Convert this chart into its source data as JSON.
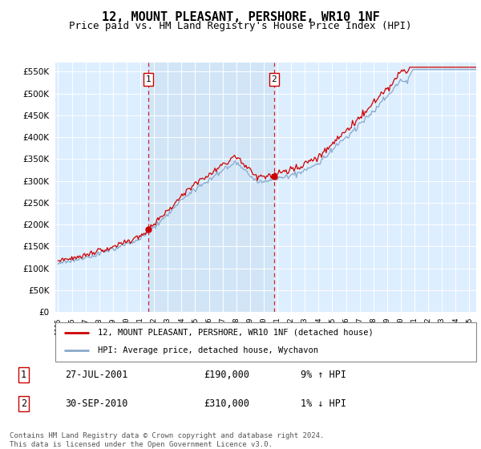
{
  "title": "12, MOUNT PLEASANT, PERSHORE, WR10 1NF",
  "subtitle": "Price paid vs. HM Land Registry's House Price Index (HPI)",
  "title_fontsize": 11,
  "subtitle_fontsize": 9,
  "ytick_values": [
    0,
    50000,
    100000,
    150000,
    200000,
    250000,
    300000,
    350000,
    400000,
    450000,
    500000,
    550000
  ],
  "ylim": [
    0,
    570000
  ],
  "xlim_start": 1994.8,
  "xlim_end": 2025.5,
  "xtick_years": [
    1995,
    1996,
    1997,
    1998,
    1999,
    2000,
    2001,
    2002,
    2003,
    2004,
    2005,
    2006,
    2007,
    2008,
    2009,
    2010,
    2011,
    2012,
    2013,
    2014,
    2015,
    2016,
    2017,
    2018,
    2019,
    2020,
    2021,
    2022,
    2023,
    2024,
    2025
  ],
  "bg_color": "#ddeeff",
  "grid_color": "#ffffff",
  "line1_color": "#cc0000",
  "line2_color": "#88aacc",
  "line1_label": "12, MOUNT PLEASANT, PERSHORE, WR10 1NF (detached house)",
  "line2_label": "HPI: Average price, detached house, Wychavon",
  "marker1_date": 2001.57,
  "marker1_price": 190000,
  "marker1_label": "1",
  "marker1_text": "27-JUL-2001",
  "marker1_price_text": "£190,000",
  "marker1_pct": "9% ↑ HPI",
  "marker2_date": 2010.75,
  "marker2_price": 310000,
  "marker2_label": "2",
  "marker2_text": "30-SEP-2010",
  "marker2_price_text": "£310,000",
  "marker2_pct": "1% ↓ HPI",
  "footer": "Contains HM Land Registry data © Crown copyright and database right 2024.\nThis data is licensed under the Open Government Licence v3.0.",
  "marker_box_edge": "#cc0000",
  "shaded_region1_start": 2001.57,
  "shaded_region1_end": 2010.75
}
